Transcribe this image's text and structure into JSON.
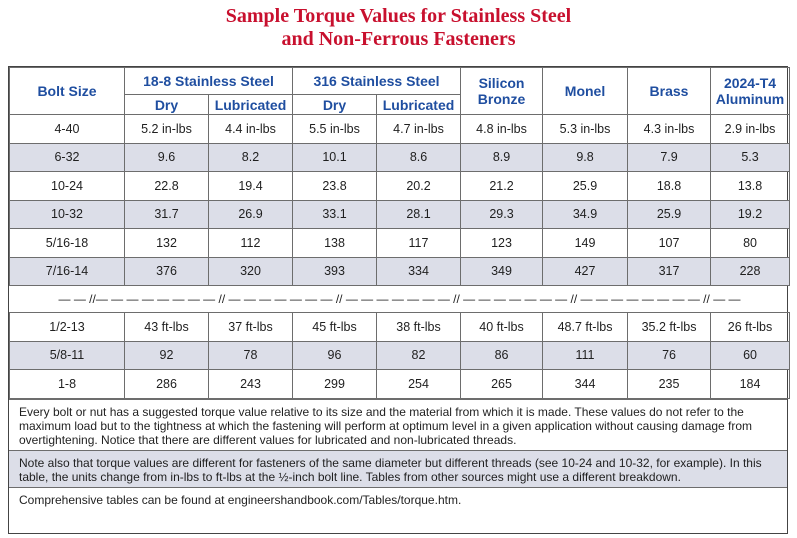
{
  "title": {
    "line1": "Sample Torque Values for Stainless Steel",
    "line2": "and Non-Ferrous Fasteners"
  },
  "header": {
    "bolt_size": "Bolt Size",
    "ss188": "18-8 Stainless Steel",
    "ss316": "316 Stainless Steel",
    "silicon_bronze_1": "Silicon",
    "silicon_bronze_2": "Bronze",
    "monel": "Monel",
    "brass": "Brass",
    "aluminum_1": "2024-T4",
    "aluminum_2": "Aluminum",
    "dry": "Dry",
    "lubricated": "Lubricated"
  },
  "rows_top": [
    [
      "4-40",
      "5.2 in-lbs",
      "4.4 in-lbs",
      "5.5 in-lbs",
      "4.7 in-lbs",
      "4.8 in-lbs",
      "5.3 in-lbs",
      "4.3 in-lbs",
      "2.9 in-lbs"
    ],
    [
      "6-32",
      "9.6",
      "8.2",
      "10.1",
      "8.6",
      "8.9",
      "9.8",
      "7.9",
      "5.3"
    ],
    [
      "10-24",
      "22.8",
      "19.4",
      "23.8",
      "20.2",
      "21.2",
      "25.9",
      "18.8",
      "13.8"
    ],
    [
      "10-32",
      "31.7",
      "26.9",
      "33.1",
      "28.1",
      "29.3",
      "34.9",
      "25.9",
      "19.2"
    ],
    [
      "5/16-18",
      "132",
      "112",
      "138",
      "117",
      "123",
      "149",
      "107",
      "80"
    ],
    [
      "7/16-14",
      "376",
      "320",
      "393",
      "334",
      "349",
      "427",
      "317",
      "228"
    ]
  ],
  "separator": "— — //— — — — — — — — // — — — — — — — // — — — — — —  — // — — — — — — — // — — — — — — — — // — —",
  "rows_bottom": [
    [
      "1/2-13",
      "43 ft-lbs",
      "37 ft-lbs",
      "45 ft-lbs",
      "38 ft-lbs",
      "40 ft-lbs",
      "48.7 ft-lbs",
      "35.2 ft-lbs",
      "26 ft-lbs"
    ],
    [
      "5/8-11",
      "92",
      "78",
      "96",
      "82",
      "86",
      "111",
      "76",
      "60"
    ],
    [
      "1-8",
      "286",
      "243",
      "299",
      "254",
      "265",
      "344",
      "235",
      "184"
    ]
  ],
  "notes": {
    "p1": "Every bolt or nut has a suggested torque value relative to its size and the material from which it is made. These values do not refer to the maximum load but to the tightness at which the fastening will perform at optimum level in a given application without causing damage from overtightening. Notice that there are different values for lubricated and non-lubricated threads.",
    "p2": "Note also that torque values are different for fasteners of the same diameter but different threads (see 10-24 and 10-32, for example). In this table, the units change from in-lbs to ft-lbs at the ½-inch bolt line. Tables from other sources might use a different breakdown.",
    "p3": "Comprehensive tables can be found at engineershandbook.com/Tables/torque.htm."
  },
  "colors": {
    "title": "#c8102e",
    "header_text": "#1f4ea0",
    "shade": "#dcdee8",
    "border": "#6d6d6d"
  }
}
